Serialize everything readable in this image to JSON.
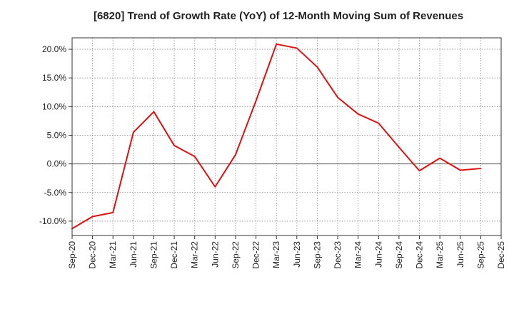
{
  "chart_data": {
    "type": "line",
    "title": "[6820]  Trend of Growth Rate (YoY) of 12-Month Moving Sum of Revenues",
    "xlabel": "",
    "ylabel": "",
    "ylim": [
      -12.5,
      22.0
    ],
    "yticks": [
      20.0,
      15.0,
      10.0,
      5.0,
      0.0,
      -5.0,
      -10.0
    ],
    "ytick_labels": [
      "20.0%",
      "15.0%",
      "10.0%",
      "5.0%",
      "0.0%",
      "-5.0%",
      "-10.0%"
    ],
    "x_tick_labels": [
      "Sep-20",
      "Dec-20",
      "Mar-21",
      "Jun-21",
      "Sep-21",
      "Dec-21",
      "Mar-22",
      "Jun-22",
      "Sep-22",
      "Dec-22",
      "Mar-23",
      "Jun-23",
      "Sep-23",
      "Dec-23",
      "Mar-24",
      "Jun-24",
      "Sep-24",
      "Dec-24",
      "Mar-25",
      "Jun-25",
      "Sep-25",
      "Dec-25"
    ],
    "grid": true,
    "series": [
      {
        "name": "Growth Rate (YoY)",
        "color": "#dd1111",
        "x": [
          "Sep-20",
          "Dec-20",
          "Mar-21",
          "Jun-21",
          "Sep-21",
          "Dec-21",
          "Mar-22",
          "Jun-22",
          "Sep-22",
          "Dec-22",
          "Mar-23",
          "Jun-23",
          "Sep-23",
          "Dec-23",
          "Mar-24",
          "Jun-24",
          "Sep-24",
          "Dec-24",
          "Mar-25",
          "Jun-25",
          "Sep-25"
        ],
        "values": [
          -11.3,
          -9.2,
          -8.5,
          5.5,
          9.1,
          3.2,
          1.3,
          -4.0,
          1.6,
          11.0,
          20.9,
          20.2,
          16.9,
          11.6,
          8.7,
          7.1,
          2.9,
          -1.2,
          1.0,
          -1.1,
          -0.8
        ]
      }
    ]
  }
}
